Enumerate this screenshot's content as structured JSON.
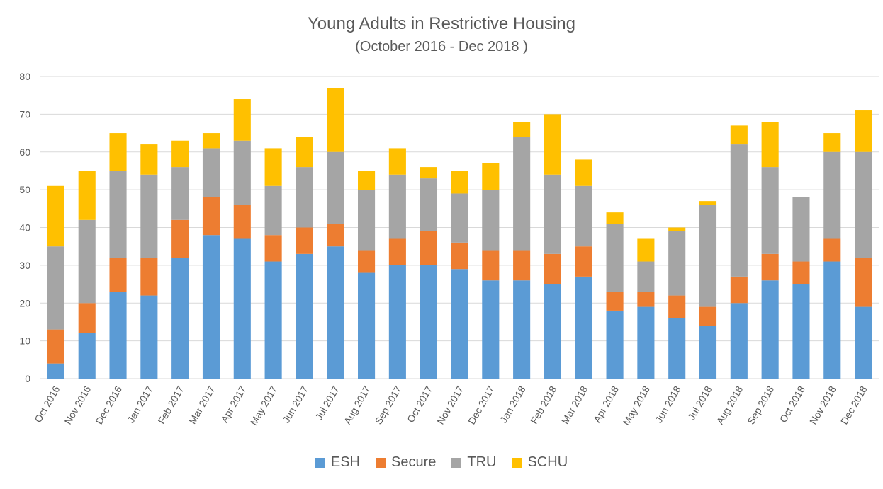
{
  "chart_data": {
    "type": "bar",
    "stacked": true,
    "title": "Young Adults in Restrictive Housing",
    "subtitle": "(October 2016 - Dec 2018 )",
    "xlabel": "",
    "ylabel": "",
    "ylim": [
      0,
      80
    ],
    "yticks": [
      0,
      10,
      20,
      30,
      40,
      50,
      60,
      70,
      80
    ],
    "grid": true,
    "legend_position": "bottom",
    "categories": [
      "Oct 2016",
      "Nov 2016",
      "Dec 2016",
      "Jan 2017",
      "Feb 2017",
      "Mar 2017",
      "Apr 2017",
      "May 2017",
      "Jun 2017",
      "Jul 2017",
      "Aug 2017",
      "Sep 2017",
      "Oct 2017",
      "Nov 2017",
      "Dec 2017",
      "Jan 2018",
      "Feb 2018",
      "Mar 2018",
      "Apr 2018",
      "May 2018",
      "Jun 2018",
      "Jul 2018",
      "Aug 2018",
      "Sep 2018",
      "Oct 2018",
      "Nov 2018",
      "Dec 2018"
    ],
    "series": [
      {
        "name": "ESH",
        "color": "#5B9BD5",
        "values": [
          4,
          12,
          23,
          22,
          32,
          38,
          37,
          31,
          33,
          35,
          28,
          30,
          30,
          29,
          26,
          26,
          25,
          27,
          18,
          19,
          16,
          14,
          20,
          26,
          25,
          31,
          19
        ]
      },
      {
        "name": "Secure",
        "color": "#ED7D31",
        "values": [
          9,
          8,
          9,
          10,
          10,
          10,
          9,
          7,
          7,
          6,
          6,
          7,
          9,
          7,
          8,
          8,
          8,
          8,
          5,
          4,
          6,
          5,
          7,
          7,
          6,
          6,
          13
        ]
      },
      {
        "name": "TRU",
        "color": "#A5A5A5",
        "values": [
          22,
          22,
          23,
          22,
          14,
          13,
          17,
          13,
          16,
          19,
          16,
          17,
          14,
          13,
          16,
          30,
          21,
          16,
          18,
          8,
          17,
          27,
          35,
          23,
          17,
          23,
          28
        ]
      },
      {
        "name": "SCHU",
        "color": "#FFC000",
        "values": [
          16,
          13,
          10,
          8,
          7,
          4,
          11,
          10,
          8,
          17,
          5,
          7,
          3,
          6,
          7,
          4,
          16,
          7,
          3,
          6,
          1,
          1,
          5,
          12,
          0,
          5,
          11
        ]
      }
    ]
  }
}
